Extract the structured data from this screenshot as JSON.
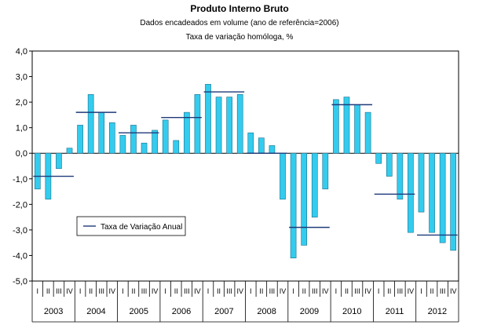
{
  "chart_data": {
    "type": "bar",
    "title": "Produto Interno Bruto",
    "subtitle": "Dados encadeados em volume (ano de referência=2006)",
    "subtitle2": "Taxa de variação homóloga, %",
    "ylim": [
      -5,
      4
    ],
    "yticks": [
      "4,0",
      "3,0",
      "2,0",
      "1,0",
      "0,0",
      "-1,0",
      "-2,0",
      "-3,0",
      "-4,0",
      "-5,0"
    ],
    "years": [
      "2003",
      "2004",
      "2005",
      "2006",
      "2007",
      "2008",
      "2009",
      "2010",
      "2011",
      "2012"
    ],
    "quarters": [
      "I",
      "II",
      "III",
      "IV"
    ],
    "series": [
      {
        "name": "Taxa de variação homóloga",
        "values": [
          -1.4,
          -1.8,
          -0.6,
          0.2,
          1.1,
          2.3,
          1.6,
          1.2,
          0.7,
          1.1,
          0.4,
          0.9,
          1.3,
          0.5,
          1.6,
          2.3,
          2.7,
          2.2,
          2.2,
          2.3,
          0.8,
          0.6,
          0.3,
          -1.8,
          -4.1,
          -3.6,
          -2.5,
          -1.4,
          2.1,
          2.2,
          1.9,
          1.6,
          -0.4,
          -0.9,
          -1.8,
          -3.1,
          -2.3,
          -3.1,
          -3.5,
          -3.8
        ],
        "color": "#33CCEE"
      },
      {
        "name": "Taxa de Variação Anual",
        "values": [
          -0.9,
          1.6,
          0.8,
          1.4,
          2.4,
          0.0,
          -2.9,
          1.9,
          -1.6,
          -3.2
        ],
        "color": "#1F3A7A"
      }
    ],
    "legend": "inside-bottom-left",
    "grid": false
  }
}
